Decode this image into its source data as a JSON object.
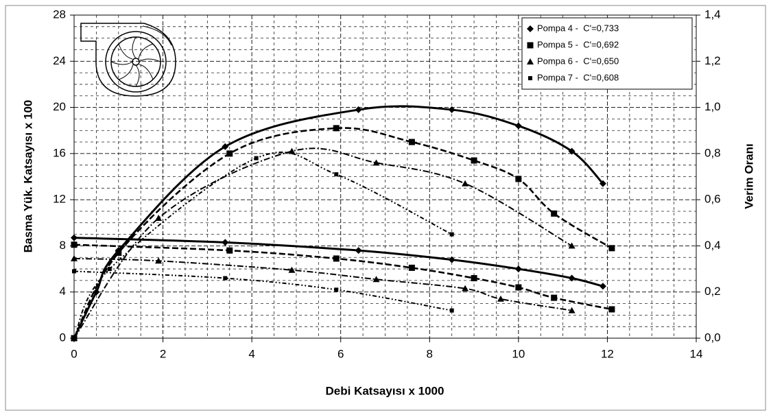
{
  "chart_data": {
    "type": "line",
    "x_label": "Debi Katsayısı x 1000",
    "y_label": "Basma Yük. Katsayısı x 100",
    "y2_label": "Verim Oranı",
    "xlim": [
      0,
      14
    ],
    "xticks": [
      0,
      2,
      4,
      6,
      8,
      10,
      12,
      14
    ],
    "ylim": [
      0,
      28
    ],
    "yticks": [
      0,
      4,
      8,
      12,
      16,
      20,
      24,
      28
    ],
    "y2lim": [
      0,
      1.4
    ],
    "y2ticks": [
      {
        "value": 0,
        "label": "0,0"
      },
      {
        "value": 0.2,
        "label": "0,2"
      },
      {
        "value": 0.4,
        "label": "0,4"
      },
      {
        "value": 0.6,
        "label": "0,6"
      },
      {
        "value": 0.8,
        "label": "0,8"
      },
      {
        "value": 1.0,
        "label": "1,0"
      },
      {
        "value": 1.2,
        "label": "1,2"
      },
      {
        "value": 1.4,
        "label": "1,4"
      }
    ],
    "grid": true,
    "legend": "top-right",
    "series": [
      {
        "name": "Pompa 4 -  C'=0,733",
        "color": "#000000",
        "marker": "diamond",
        "line_style": "solid",
        "x": [
          0,
          3.4,
          6.4,
          8.5,
          10,
          11.2,
          11.9
        ],
        "values": [
          8.7,
          8.3,
          7.6,
          6.8,
          6.0,
          5.2,
          4.5
        ]
      },
      {
        "name": "Pompa 5 -  C'=0,692",
        "color": "#000000",
        "marker": "square",
        "line_style": "dashed",
        "x": [
          0,
          3.5,
          5.9,
          7.6,
          9,
          10,
          10.8,
          12.1
        ],
        "values": [
          8.1,
          7.6,
          6.9,
          6.1,
          5.2,
          4.4,
          3.5,
          2.5
        ]
      },
      {
        "name": "Pompa 6 -  C'=0,650",
        "color": "#000000",
        "marker": "triangle",
        "line_style": "dash-dot",
        "x": [
          0,
          1.9,
          4.9,
          6.8,
          8.8,
          9.6,
          11.2
        ],
        "values": [
          6.9,
          6.7,
          5.9,
          5.1,
          4.3,
          3.4,
          2.4
        ]
      },
      {
        "name": "Pompa 7 -  C'=0,608",
        "color": "#000000",
        "marker": "small-square",
        "line_style": "dash-dot-dot",
        "x": [
          0,
          3.4,
          5.9,
          8.5
        ],
        "values": [
          5.8,
          5.2,
          4.2,
          2.4
        ]
      },
      {
        "color": "#000000",
        "marker": "diamond",
        "line_style": "solid",
        "axis": "y2",
        "x": [
          0,
          0.5,
          1,
          3.4,
          6.4,
          8.5,
          10,
          11.2,
          11.9
        ],
        "values": [
          0,
          0.2,
          0.38,
          0.83,
          0.99,
          0.99,
          0.92,
          0.81,
          0.67
        ]
      },
      {
        "color": "#000000",
        "marker": "square",
        "line_style": "dashed",
        "axis": "y2",
        "x": [
          0,
          1,
          3.5,
          5.9,
          7.6,
          9,
          10,
          10.8,
          12.1
        ],
        "values": [
          0,
          0.37,
          0.8,
          0.91,
          0.85,
          0.77,
          0.69,
          0.54,
          0.39
        ]
      },
      {
        "color": "#000000",
        "marker": "triangle",
        "line_style": "dash-dot",
        "axis": "y2",
        "x": [
          0,
          1.9,
          4.9,
          6.8,
          8.8,
          11.2
        ],
        "values": [
          0,
          0.52,
          0.81,
          0.76,
          0.67,
          0.4
        ]
      },
      {
        "color": "#000000",
        "marker": "small-square",
        "line_style": "dash-dot-dot",
        "axis": "y2",
        "x": [
          0,
          0.8,
          4.1,
          5.9,
          8.5
        ],
        "values": [
          0,
          0.3,
          0.78,
          0.71,
          0.45
        ]
      }
    ]
  }
}
